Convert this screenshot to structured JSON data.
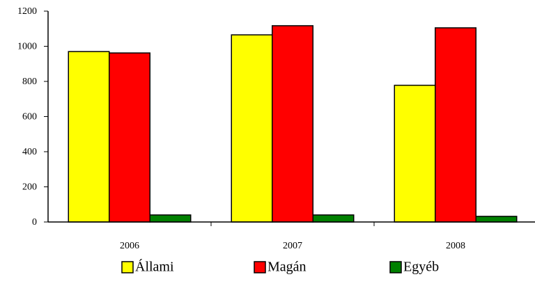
{
  "chart_data": {
    "type": "bar",
    "categories": [
      "2006",
      "2007",
      "2008"
    ],
    "series": [
      {
        "name": "Állami",
        "color": "#ffff00",
        "values": [
          970,
          1065,
          778
        ]
      },
      {
        "name": "Magán",
        "color": "#ff0000",
        "values": [
          962,
          1117,
          1105
        ]
      },
      {
        "name": "Egyéb",
        "color": "#008000",
        "values": [
          40,
          40,
          32
        ]
      }
    ],
    "ylim": [
      0,
      1200
    ],
    "yticks": [
      0,
      200,
      400,
      600,
      800,
      1000,
      1200
    ],
    "legend": "bottom"
  }
}
